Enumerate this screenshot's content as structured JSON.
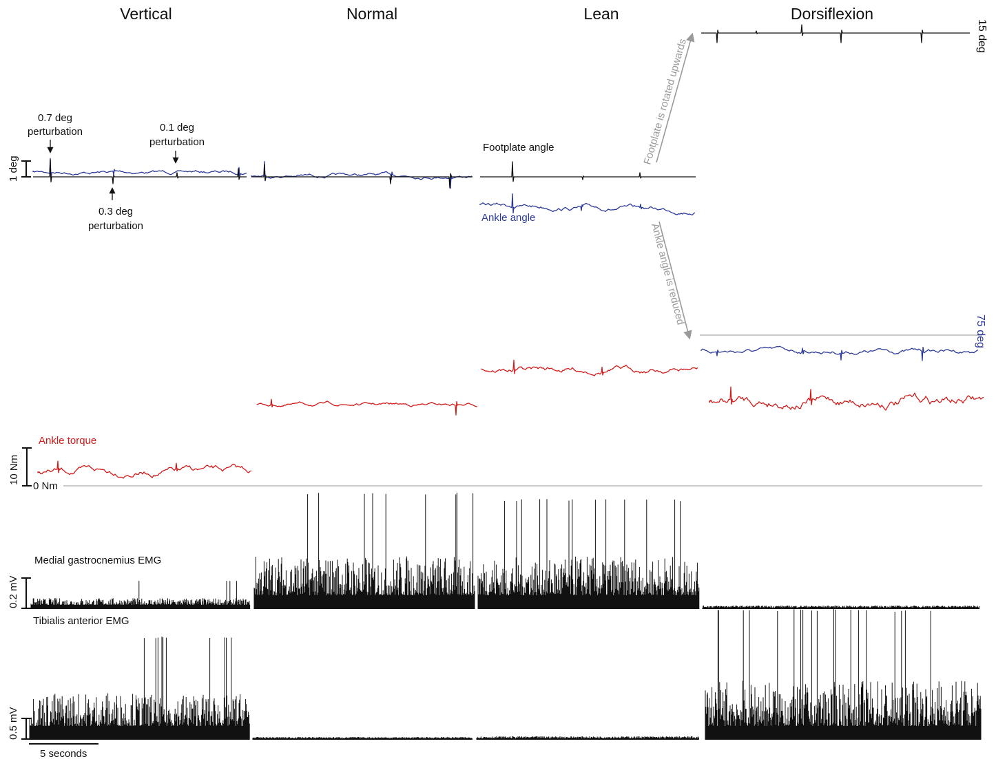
{
  "conditions": [
    "Vertical",
    "Normal",
    "Lean",
    "Dorsiflexion"
  ],
  "colors": {
    "footplate": "#111111",
    "ankle_angle": "#2b3a9a",
    "torque": "#d11a1a",
    "emg": "#111111",
    "arrows": "#9a9a9a",
    "zero_line": "#aaaaaa"
  },
  "labels": {
    "footplate_angle": "Footplate angle",
    "ankle_angle": "Ankle angle",
    "ankle_torque": "Ankle torque",
    "mg_emg": "Medial gastrocnemius EMG",
    "ta_emg": "Tibialis anterior EMG",
    "perturb_07_a": "0.7 deg",
    "perturb_07_b": "perturbation",
    "perturb_01_a": "0.1 deg",
    "perturb_01_b": "perturbation",
    "perturb_03_a": "0.3 deg",
    "perturb_03_b": "perturbation",
    "footplate_rotated": "Footplate is rotated upwards",
    "ankle_reduced": "Ankle angle is reduced"
  },
  "scale_bars": {
    "angle": "1 deg",
    "torque": "10 Nm",
    "torque_zero": "0 Nm",
    "mg": "0.2 mV",
    "ta": "0.5 mV",
    "time": "5 seconds",
    "footplate_offset": "15 deg",
    "ankle_offset": "75 deg"
  },
  "chart_data": {
    "type": "line",
    "x_scale_seconds_per_bar": 5,
    "panels": [
      {
        "condition": "Vertical",
        "perturbations_deg": [
          0.7,
          0.3,
          0.1
        ],
        "footplate_angle": "flat with perturbations",
        "ankle_torque_nm_approx": [
          3.5,
          4,
          2.5,
          2,
          1
        ]
      },
      {
        "condition": "Normal",
        "ankle_torque_nm_approx": "about 22"
      },
      {
        "condition": "Lean",
        "ankle_torque_nm_approx": "about 31"
      },
      {
        "condition": "Dorsiflexion",
        "footplate_angle_deg": 15,
        "ankle_angle_deg": 75,
        "ankle_torque_nm_approx": "about 26"
      }
    ],
    "emg_levels": {
      "medial_gastrocnemius": {
        "Vertical": "low",
        "Normal": "high",
        "Lean": "high",
        "Dorsiflexion": "minimal"
      },
      "tibialis_anterior": {
        "Vertical": "high",
        "Normal": "minimal",
        "Lean": "minimal",
        "Dorsiflexion": "high"
      }
    }
  }
}
